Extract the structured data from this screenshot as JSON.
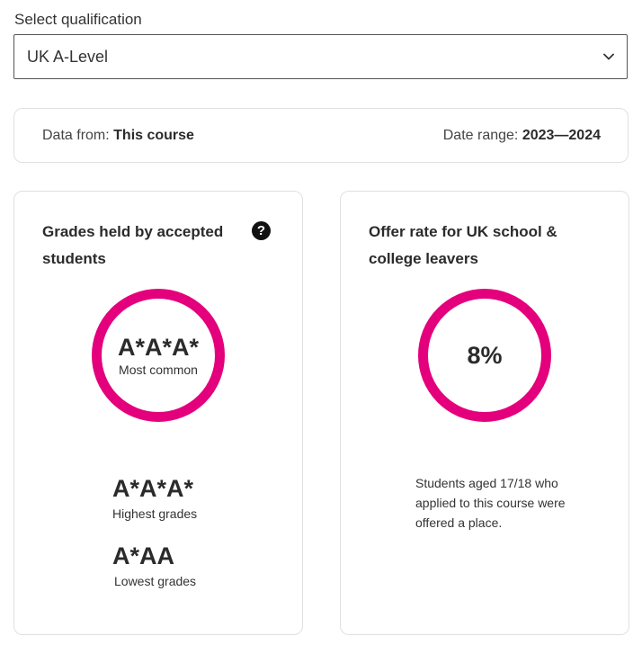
{
  "qualification": {
    "label": "Select qualification",
    "selected": "UK A-Level"
  },
  "info_bar": {
    "data_from_label": "Data from:",
    "data_from_value": "This course",
    "date_range_label": "Date range:",
    "date_range_value": "2023—2024"
  },
  "grades_card": {
    "title": "Grades held by accepted students",
    "help_symbol": "?",
    "most_common_value": "A*A*A*",
    "most_common_label": "Most common",
    "highest_value": "A*A*A*",
    "highest_label": "Highest grades",
    "lowest_value": "A*AA",
    "lowest_label": "Lowest grades"
  },
  "offer_card": {
    "title": "Offer rate for UK school & college leavers",
    "rate": "8%",
    "description": "Students aged 17/18 who applied to this course were offered a place."
  },
  "colors": {
    "accent": "#e4007c",
    "text": "#2b2b2b",
    "border": "#e0e0e0"
  },
  "icons": {
    "select_chevron": "chevron-down-icon",
    "help": "help-icon"
  }
}
